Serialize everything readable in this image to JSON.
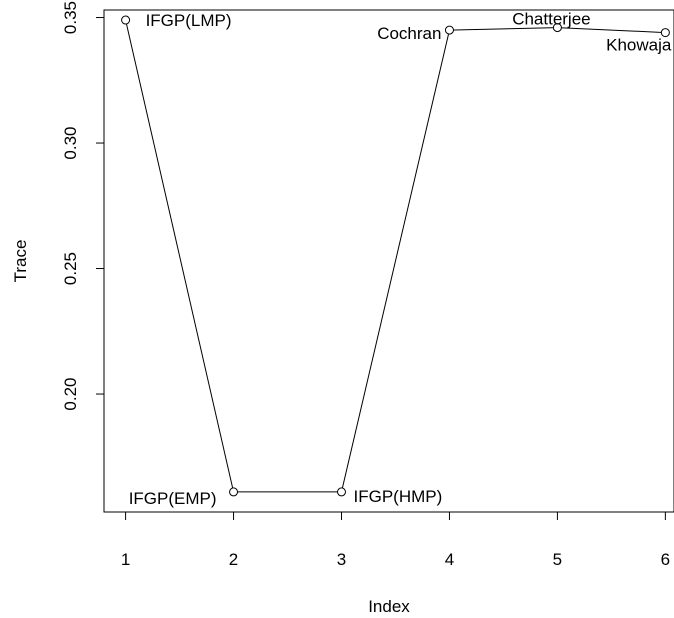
{
  "chart_data": {
    "type": "line",
    "xlabel": "Index",
    "ylabel": "Trace",
    "x": [
      1,
      2,
      3,
      4,
      5,
      6
    ],
    "values": [
      0.349,
      0.161,
      0.161,
      0.345,
      0.346,
      0.344
    ],
    "point_labels": [
      "IFGP(LMP)",
      "IFGP(EMP)",
      "IFGP(HMP)",
      "Cochran",
      "Chatterjee",
      "Khowaja"
    ],
    "xticks": [
      "1",
      "2",
      "3",
      "4",
      "5",
      "6"
    ],
    "yticks": [
      "0.20",
      "0.25",
      "0.30",
      "0.35"
    ],
    "xlim": [
      0.8,
      6.08
    ],
    "ylim": [
      0.153,
      0.353
    ],
    "grid": false,
    "line_color": "#000000",
    "marker": "open-circle"
  }
}
